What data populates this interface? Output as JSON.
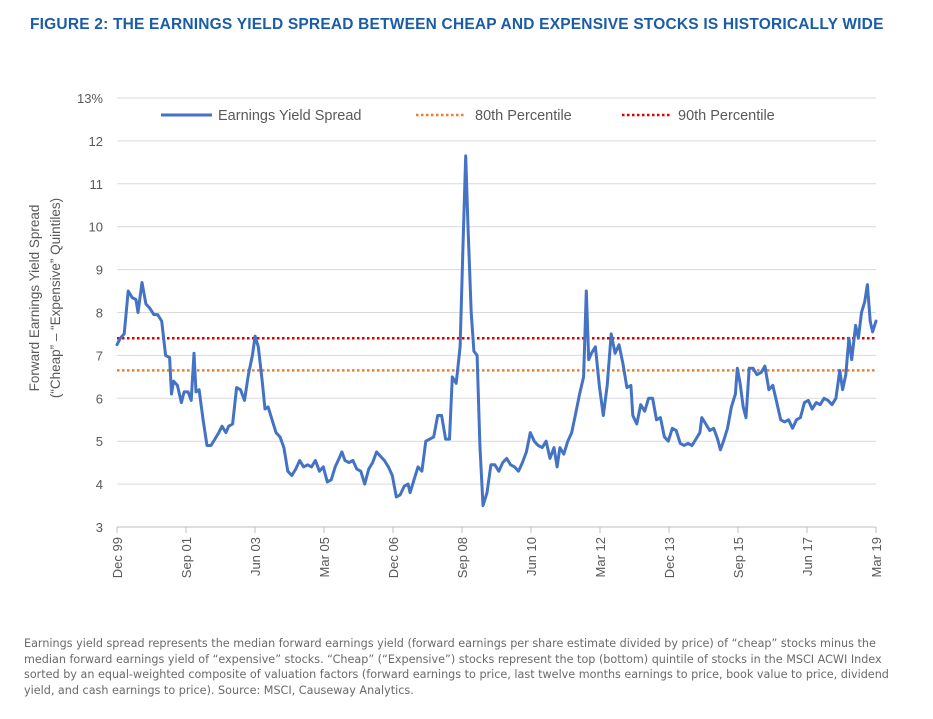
{
  "figure_title": "FIGURE 2: THE EARNINGS YIELD SPREAD BETWEEN CHEAP AND EXPENSIVE STOCKS IS HISTORICALLY WIDE",
  "note": "Earnings yield spread represents the median forward earnings yield (forward earnings per share estimate divided by price) of “cheap” stocks minus the median forward earnings yield of “expensive” stocks. “Cheap” (“Expensive”) stocks represent the top (bottom) quintile of stocks in the MSCI ACWI Index sorted by an equal-weighted composite of valuation factors (forward earnings to price, last twelve months earnings to price, book value to price, dividend yield, and cash earnings to price). Source: MSCI, Causeway Analytics.",
  "colors": {
    "title": "#1a5ca8",
    "series": "#4472c4",
    "p80": "#ed7d31",
    "p90": "#e00000",
    "grid": "#d9d9d9",
    "text": "#595959"
  },
  "chart_data": {
    "type": "line",
    "title": "",
    "ylabel_line1": "Forward Earnings Yield Spread",
    "ylabel_line2": "(“Cheap” – “Expensive” Quintiles)",
    "xlabel": "",
    "ylim": [
      3,
      13
    ],
    "yticks": [
      3,
      4,
      5,
      6,
      7,
      8,
      9,
      10,
      11,
      12,
      13
    ],
    "ytick_labels": [
      "3",
      "4",
      "5",
      "6",
      "7",
      "8",
      "9",
      "10",
      "11",
      "12",
      "13%"
    ],
    "x_range": [
      1999.917,
      2019.167
    ],
    "xticks": [
      {
        "x": 1999.917,
        "label": "Dec 99"
      },
      {
        "x": 2001.667,
        "label": "Sep 01"
      },
      {
        "x": 2003.417,
        "label": "Jun 03"
      },
      {
        "x": 2005.167,
        "label": "Mar 05"
      },
      {
        "x": 2006.917,
        "label": "Dec 06"
      },
      {
        "x": 2008.667,
        "label": "Sep 08"
      },
      {
        "x": 2010.417,
        "label": "Jun 10"
      },
      {
        "x": 2012.167,
        "label": "Mar 12"
      },
      {
        "x": 2013.917,
        "label": "Dec 13"
      },
      {
        "x": 2015.667,
        "label": "Sep 15"
      },
      {
        "x": 2017.417,
        "label": "Jun 17"
      },
      {
        "x": 2019.167,
        "label": "Mar 19"
      }
    ],
    "grid": true,
    "legend_position": "top",
    "legend": [
      {
        "label": "Earnings Yield Spread",
        "style": "solid"
      },
      {
        "label": "80th Percentile",
        "style": "dotted"
      },
      {
        "label": "90th Percentile",
        "style": "dotted"
      }
    ],
    "percentile_80": 6.65,
    "percentile_90": 7.4,
    "series": [
      {
        "name": "Earnings Yield Spread",
        "points": [
          [
            1999.917,
            7.25
          ],
          [
            2000.0,
            7.4
          ],
          [
            2000.1,
            7.5
          ],
          [
            2000.2,
            8.5
          ],
          [
            2000.3,
            8.35
          ],
          [
            2000.4,
            8.3
          ],
          [
            2000.45,
            8.0
          ],
          [
            2000.55,
            8.7
          ],
          [
            2000.65,
            8.2
          ],
          [
            2000.75,
            8.1
          ],
          [
            2000.85,
            7.95
          ],
          [
            2000.95,
            7.95
          ],
          [
            2001.05,
            7.8
          ],
          [
            2001.15,
            7.0
          ],
          [
            2001.25,
            6.95
          ],
          [
            2001.3,
            6.1
          ],
          [
            2001.35,
            6.4
          ],
          [
            2001.45,
            6.3
          ],
          [
            2001.55,
            5.9
          ],
          [
            2001.62,
            6.15
          ],
          [
            2001.72,
            6.15
          ],
          [
            2001.8,
            5.95
          ],
          [
            2001.87,
            7.05
          ],
          [
            2001.92,
            6.15
          ],
          [
            2002.0,
            6.2
          ],
          [
            2002.1,
            5.5
          ],
          [
            2002.2,
            4.9
          ],
          [
            2002.3,
            4.9
          ],
          [
            2002.4,
            5.05
          ],
          [
            2002.5,
            5.2
          ],
          [
            2002.58,
            5.35
          ],
          [
            2002.68,
            5.2
          ],
          [
            2002.75,
            5.35
          ],
          [
            2002.85,
            5.4
          ],
          [
            2002.95,
            6.25
          ],
          [
            2003.05,
            6.2
          ],
          [
            2003.15,
            5.95
          ],
          [
            2003.25,
            6.55
          ],
          [
            2003.35,
            7.0
          ],
          [
            2003.42,
            7.45
          ],
          [
            2003.5,
            7.2
          ],
          [
            2003.6,
            6.4
          ],
          [
            2003.67,
            5.75
          ],
          [
            2003.75,
            5.8
          ],
          [
            2003.85,
            5.5
          ],
          [
            2003.95,
            5.2
          ],
          [
            2004.05,
            5.1
          ],
          [
            2004.15,
            4.85
          ],
          [
            2004.25,
            4.3
          ],
          [
            2004.35,
            4.2
          ],
          [
            2004.45,
            4.35
          ],
          [
            2004.55,
            4.55
          ],
          [
            2004.65,
            4.4
          ],
          [
            2004.75,
            4.45
          ],
          [
            2004.85,
            4.4
          ],
          [
            2004.95,
            4.55
          ],
          [
            2005.05,
            4.3
          ],
          [
            2005.15,
            4.4
          ],
          [
            2005.25,
            4.05
          ],
          [
            2005.35,
            4.1
          ],
          [
            2005.45,
            4.4
          ],
          [
            2005.55,
            4.6
          ],
          [
            2005.62,
            4.75
          ],
          [
            2005.7,
            4.55
          ],
          [
            2005.8,
            4.5
          ],
          [
            2005.9,
            4.55
          ],
          [
            2006.0,
            4.35
          ],
          [
            2006.1,
            4.3
          ],
          [
            2006.2,
            4.0
          ],
          [
            2006.3,
            4.35
          ],
          [
            2006.4,
            4.5
          ],
          [
            2006.5,
            4.75
          ],
          [
            2006.6,
            4.65
          ],
          [
            2006.7,
            4.55
          ],
          [
            2006.8,
            4.4
          ],
          [
            2006.9,
            4.2
          ],
          [
            2007.0,
            3.7
          ],
          [
            2007.1,
            3.75
          ],
          [
            2007.2,
            3.95
          ],
          [
            2007.3,
            4.0
          ],
          [
            2007.35,
            3.8
          ],
          [
            2007.45,
            4.1
          ],
          [
            2007.55,
            4.4
          ],
          [
            2007.65,
            4.3
          ],
          [
            2007.75,
            5.0
          ],
          [
            2007.85,
            5.05
          ],
          [
            2007.95,
            5.1
          ],
          [
            2008.05,
            5.6
          ],
          [
            2008.15,
            5.6
          ],
          [
            2008.25,
            5.05
          ],
          [
            2008.35,
            5.05
          ],
          [
            2008.42,
            6.5
          ],
          [
            2008.52,
            6.35
          ],
          [
            2008.62,
            7.2
          ],
          [
            2008.7,
            9.8
          ],
          [
            2008.76,
            11.65
          ],
          [
            2008.82,
            10.0
          ],
          [
            2008.9,
            8.0
          ],
          [
            2008.97,
            7.1
          ],
          [
            2009.05,
            7.0
          ],
          [
            2009.12,
            4.9
          ],
          [
            2009.2,
            3.5
          ],
          [
            2009.3,
            3.8
          ],
          [
            2009.4,
            4.45
          ],
          [
            2009.5,
            4.45
          ],
          [
            2009.6,
            4.3
          ],
          [
            2009.7,
            4.5
          ],
          [
            2009.8,
            4.6
          ],
          [
            2009.9,
            4.45
          ],
          [
            2010.0,
            4.4
          ],
          [
            2010.1,
            4.3
          ],
          [
            2010.2,
            4.5
          ],
          [
            2010.3,
            4.75
          ],
          [
            2010.4,
            5.2
          ],
          [
            2010.5,
            5.0
          ],
          [
            2010.6,
            4.9
          ],
          [
            2010.7,
            4.85
          ],
          [
            2010.8,
            5.0
          ],
          [
            2010.9,
            4.6
          ],
          [
            2011.0,
            4.85
          ],
          [
            2011.08,
            4.4
          ],
          [
            2011.15,
            4.85
          ],
          [
            2011.25,
            4.7
          ],
          [
            2011.35,
            5.0
          ],
          [
            2011.45,
            5.2
          ],
          [
            2011.55,
            5.65
          ],
          [
            2011.65,
            6.1
          ],
          [
            2011.75,
            6.5
          ],
          [
            2011.82,
            8.5
          ],
          [
            2011.88,
            6.9
          ],
          [
            2011.95,
            7.05
          ],
          [
            2012.05,
            7.2
          ],
          [
            2012.15,
            6.3
          ],
          [
            2012.25,
            5.6
          ],
          [
            2012.35,
            6.3
          ],
          [
            2012.45,
            7.5
          ],
          [
            2012.55,
            7.05
          ],
          [
            2012.65,
            7.25
          ],
          [
            2012.75,
            6.8
          ],
          [
            2012.85,
            6.25
          ],
          [
            2012.95,
            6.3
          ],
          [
            2013.0,
            5.6
          ],
          [
            2013.1,
            5.4
          ],
          [
            2013.2,
            5.85
          ],
          [
            2013.3,
            5.7
          ],
          [
            2013.4,
            6.0
          ],
          [
            2013.5,
            6.0
          ],
          [
            2013.6,
            5.5
          ],
          [
            2013.7,
            5.55
          ],
          [
            2013.8,
            5.1
          ],
          [
            2013.9,
            5.0
          ],
          [
            2014.0,
            5.3
          ],
          [
            2014.1,
            5.25
          ],
          [
            2014.2,
            4.95
          ],
          [
            2014.3,
            4.9
          ],
          [
            2014.4,
            4.95
          ],
          [
            2014.5,
            4.9
          ],
          [
            2014.6,
            5.05
          ],
          [
            2014.7,
            5.2
          ],
          [
            2014.75,
            5.55
          ],
          [
            2014.85,
            5.4
          ],
          [
            2014.95,
            5.25
          ],
          [
            2015.05,
            5.3
          ],
          [
            2015.15,
            5.05
          ],
          [
            2015.22,
            4.8
          ],
          [
            2015.3,
            5.0
          ],
          [
            2015.4,
            5.3
          ],
          [
            2015.5,
            5.8
          ],
          [
            2015.6,
            6.1
          ],
          [
            2015.65,
            6.7
          ],
          [
            2015.72,
            6.35
          ],
          [
            2015.8,
            5.8
          ],
          [
            2015.87,
            5.55
          ],
          [
            2015.95,
            6.7
          ],
          [
            2016.05,
            6.7
          ],
          [
            2016.15,
            6.55
          ],
          [
            2016.25,
            6.6
          ],
          [
            2016.35,
            6.75
          ],
          [
            2016.45,
            6.2
          ],
          [
            2016.55,
            6.3
          ],
          [
            2016.65,
            5.9
          ],
          [
            2016.75,
            5.5
          ],
          [
            2016.85,
            5.45
          ],
          [
            2016.95,
            5.5
          ],
          [
            2017.05,
            5.3
          ],
          [
            2017.15,
            5.5
          ],
          [
            2017.25,
            5.55
          ],
          [
            2017.35,
            5.9
          ],
          [
            2017.45,
            5.95
          ],
          [
            2017.55,
            5.75
          ],
          [
            2017.65,
            5.9
          ],
          [
            2017.75,
            5.85
          ],
          [
            2017.85,
            6.0
          ],
          [
            2017.95,
            5.95
          ],
          [
            2018.05,
            5.85
          ],
          [
            2018.15,
            6.0
          ],
          [
            2018.25,
            6.65
          ],
          [
            2018.32,
            6.2
          ],
          [
            2018.4,
            6.55
          ],
          [
            2018.48,
            7.4
          ],
          [
            2018.55,
            6.9
          ],
          [
            2018.65,
            7.7
          ],
          [
            2018.72,
            7.4
          ],
          [
            2018.8,
            8.0
          ],
          [
            2018.88,
            8.25
          ],
          [
            2018.95,
            8.65
          ],
          [
            2019.02,
            7.8
          ],
          [
            2019.08,
            7.55
          ],
          [
            2019.167,
            7.8
          ]
        ]
      }
    ]
  }
}
